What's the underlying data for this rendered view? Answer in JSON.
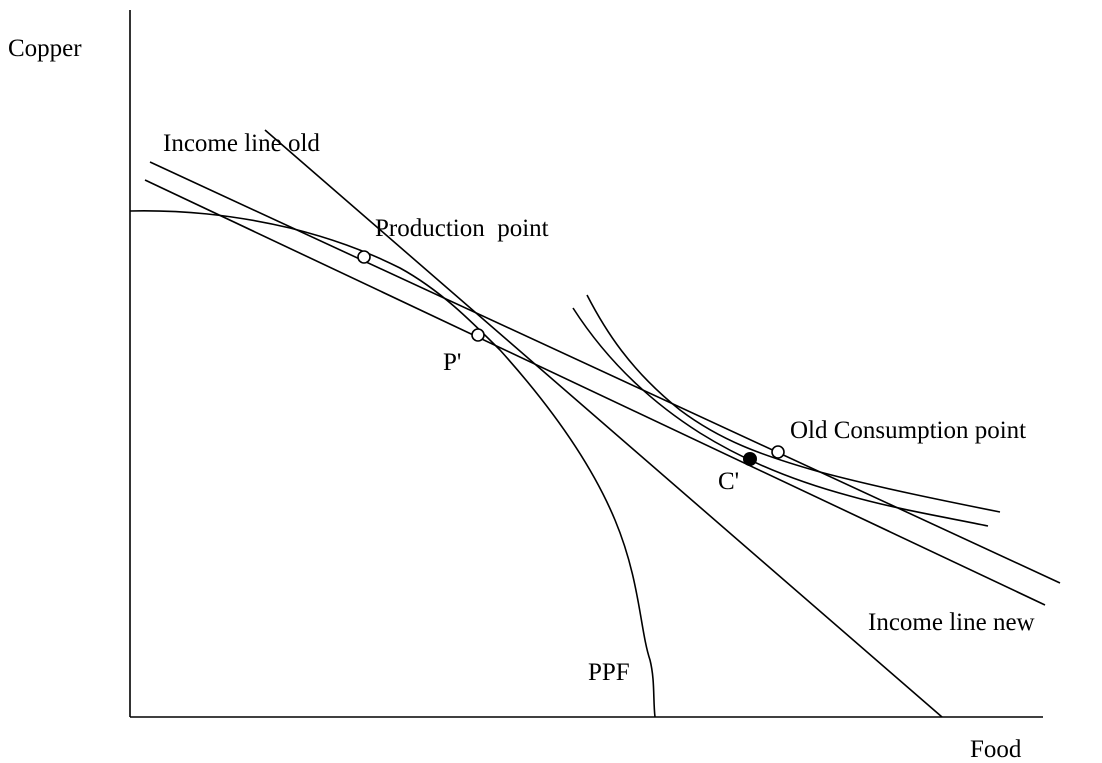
{
  "axes": {
    "y": "Copper",
    "x": "Food"
  },
  "labels": {
    "income_line_old": "Income line old",
    "production_point": "Production  point",
    "p_prime": "P'",
    "old_consumption_point": "Old Consumption point",
    "c_prime": "C'",
    "income_line_new": "Income line new",
    "ppf": "PPF"
  }
}
